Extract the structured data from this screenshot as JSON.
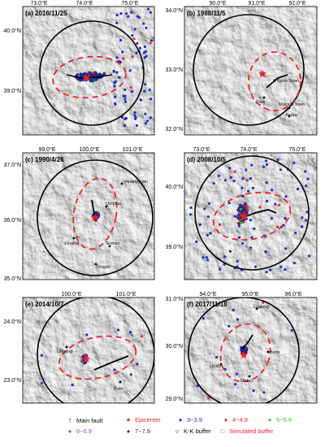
{
  "panels": [
    {
      "id": "a",
      "label": "(a) 2016/11/25",
      "lon_labels": [
        "73.0°E",
        "74.0°E",
        "75.0°E"
      ],
      "lat_labels": [
        "40.0°N",
        "39.0°N"
      ],
      "places": []
    },
    {
      "id": "b",
      "label": "(b) 1988/11/5",
      "lon_labels": [
        "90.0°E",
        "91.0°E",
        "92.0°E"
      ],
      "lat_labels": [
        "34.0°N",
        "33.0°N",
        "32.0°N"
      ],
      "places": [
        "Tuoto Town",
        "Zhao",
        "Macam Town",
        "Anduo"
      ]
    },
    {
      "id": "c",
      "label": "(c) 1990/4/26",
      "lon_labels": [
        "99.0°E",
        "100.0°E",
        "101.0°E"
      ],
      "lat_labels": [
        "37.0°N",
        "36.0°N",
        "35.0°N"
      ],
      "places": [
        "Huangyuan",
        "Qinghai",
        "Xinghai",
        "Guinan",
        "Tongde"
      ]
    },
    {
      "id": "d",
      "label": "(d) 2008/10/5",
      "lon_labels": [
        "73.0°E",
        "74.0°E",
        "75.0°E"
      ],
      "lat_labels": [
        "40.0°N",
        "39.0°N"
      ],
      "places": []
    },
    {
      "id": "e",
      "label": "(e) 2014/10/7",
      "lon_labels": [
        "100.0°E",
        "101.0°E"
      ],
      "lat_labels": [
        "24.0°N",
        "23.0°N"
      ],
      "places": [
        "Lincang",
        "Puer"
      ]
    },
    {
      "id": "f",
      "label": "(f) 2017/11/18",
      "lon_labels": [
        "94.0°E",
        "95.0°E",
        "96.0°E"
      ],
      "lat_labels": [
        "31.0°N",
        "30.0°N",
        "29.0°N"
      ],
      "places": [
        "Luolong",
        "Linzhi",
        "Bomi",
        "Motuo"
      ]
    }
  ],
  "legend": {
    "main_fault": "Main fault",
    "epicenter": "Epicenter",
    "m3": "3~3.9",
    "m4": "4~4.9",
    "m5": "5~5.9",
    "m6": "6~6.9",
    "m7": "7~7.9",
    "kk_buffer": "K-K buffer",
    "simulated_buffer": "Simulated buffer"
  },
  "colors": {
    "m3": "#1a2fbf",
    "m4": "#e8222a",
    "m5": "#2cc72c",
    "m6": "#b33ac9",
    "m7": "#7a0e0e",
    "epicenter": "#e8222a",
    "kk_buffer": "#000000",
    "simulated_buffer": "#e8222a"
  }
}
